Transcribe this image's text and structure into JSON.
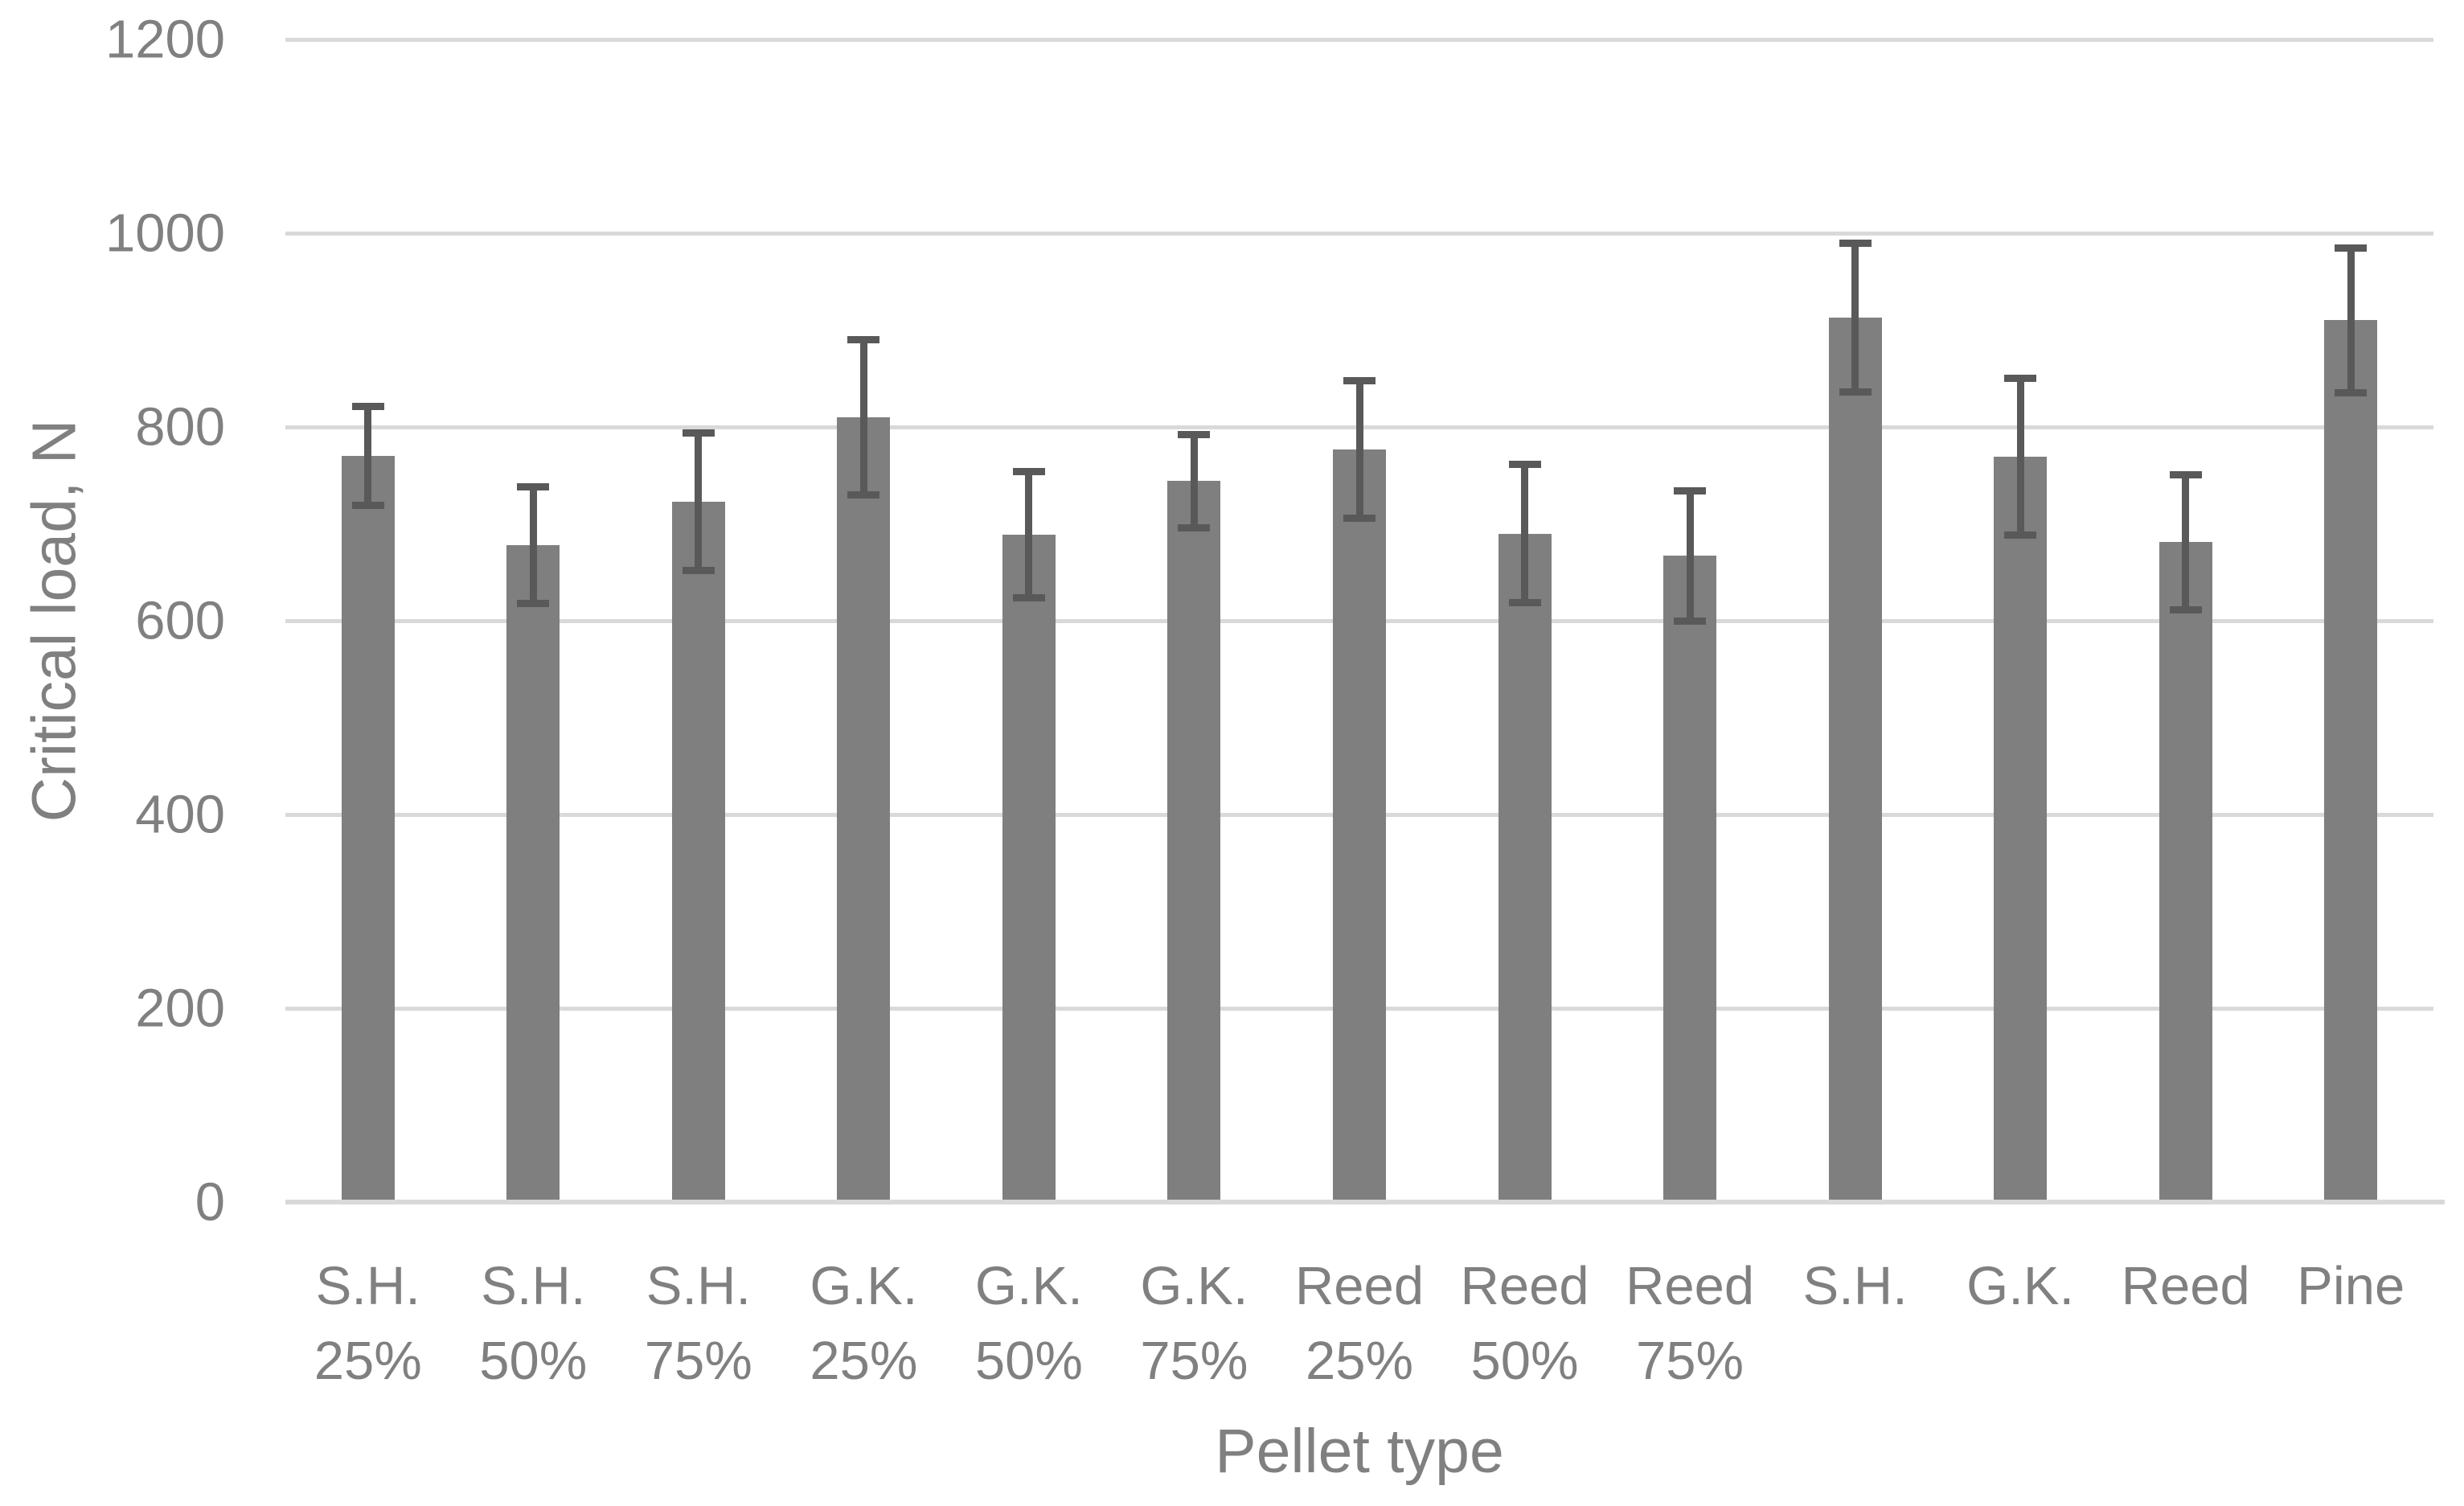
{
  "chart_data": {
    "type": "bar",
    "title": "",
    "xlabel": "Pellet type",
    "ylabel": "Critical load, N",
    "categories": [
      [
        "S.H.",
        "25%"
      ],
      [
        "S.H.",
        "50%"
      ],
      [
        "S.H.",
        "75%"
      ],
      [
        "G.K.",
        "25%"
      ],
      [
        "G.K.",
        "50%"
      ],
      [
        "G.K.",
        "75%"
      ],
      [
        "Reed",
        "25%"
      ],
      [
        "Reed",
        "50%"
      ],
      [
        "Reed",
        "75%"
      ],
      [
        "S.H."
      ],
      [
        "G.K."
      ],
      [
        "Reed"
      ],
      [
        "Pine"
      ]
    ],
    "values": [
      770,
      678,
      723,
      810,
      689,
      744,
      777,
      690,
      667,
      913,
      769,
      681,
      910
    ],
    "errors": [
      51,
      60,
      71,
      80,
      65,
      48,
      71,
      71,
      67,
      77,
      81,
      70,
      75
    ],
    "y_ticks": [
      0,
      200,
      400,
      600,
      800,
      1000,
      1200
    ],
    "ylim": [
      0,
      1200
    ],
    "grid": "horizontal",
    "legend": "none",
    "colors": {
      "bar_fill": "#7F7F7F",
      "error_bar": "#595959",
      "gridline": "#D9D9D9",
      "axis_line": "#D9D9D9",
      "text": "#808080",
      "background": "#FFFFFF"
    }
  }
}
